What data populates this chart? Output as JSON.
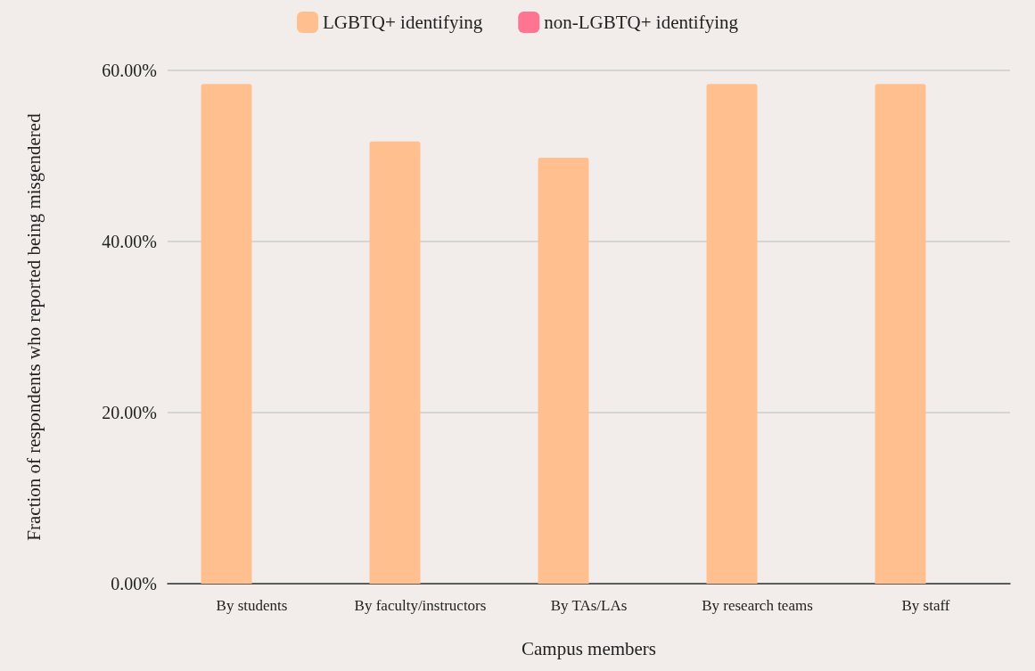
{
  "chart_data": {
    "type": "bar",
    "xlabel": "Campus members",
    "ylabel": "Fraction of respondents who reported being misgendered",
    "categories": [
      "By students",
      "By faculty/instructors",
      "By TAs/LAs",
      "By research teams",
      "By staff"
    ],
    "series": [
      {
        "name": "LGBTQ+ identifying",
        "color": "#ffbf8f",
        "values": [
          58.4,
          51.7,
          49.8,
          58.4,
          58.4
        ]
      },
      {
        "name": "non-LGBTQ+ identifying",
        "color": "#ff7591",
        "values": [
          0,
          0,
          0,
          0,
          0
        ]
      }
    ],
    "ylim": [
      0,
      60
    ],
    "yticks": [
      {
        "value": 0,
        "label": "0.00%"
      },
      {
        "value": 20,
        "label": "20.00%"
      },
      {
        "value": 40,
        "label": "40.00%"
      },
      {
        "value": 60,
        "label": "60.00%"
      }
    ],
    "grid": "y",
    "legend": "top"
  }
}
